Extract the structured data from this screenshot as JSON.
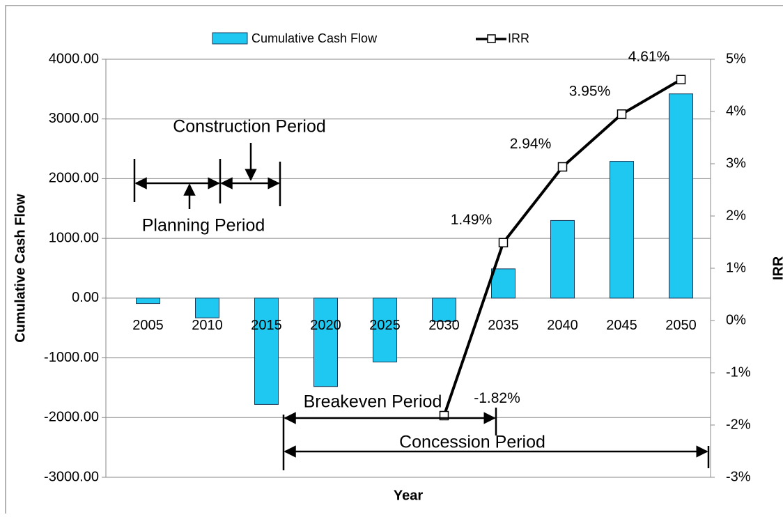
{
  "chart_data": {
    "type": "bar",
    "categories": [
      "2005",
      "2010",
      "2015",
      "2020",
      "2025",
      "2030",
      "2035",
      "2040",
      "2045",
      "2050"
    ],
    "series": [
      {
        "name": "Cumulative Cash Flow",
        "type": "bar",
        "color": "#1ec8f0",
        "values": [
          -90,
          -330,
          -1780,
          -1480,
          -1070,
          -390,
          490,
          1300,
          2290,
          3420
        ]
      },
      {
        "name": "IRR",
        "type": "line",
        "color": "#000000",
        "axis": "y2",
        "values": [
          null,
          null,
          null,
          null,
          null,
          -1.82,
          1.49,
          2.94,
          3.95,
          4.61
        ],
        "value_labels": [
          null,
          null,
          null,
          null,
          null,
          "-1.82%",
          "1.49%",
          "2.94%",
          "3.95%",
          "4.61%"
        ]
      }
    ],
    "x_label": "Year",
    "y_label": "Cumulative Cash Flow",
    "y2_label": "IRR",
    "ylim": [
      -3000,
      4000
    ],
    "yticks": [
      {
        "value": -3000,
        "label": "-3000.00"
      },
      {
        "value": -2000,
        "label": "-2000.00"
      },
      {
        "value": -1000,
        "label": "-1000.00"
      },
      {
        "value": 0,
        "label": "0.00"
      },
      {
        "value": 1000,
        "label": "1000.00"
      },
      {
        "value": 2000,
        "label": "2000.00"
      },
      {
        "value": 3000,
        "label": "3000.00"
      },
      {
        "value": 4000,
        "label": "4000.00"
      }
    ],
    "y2lim": [
      -3,
      5
    ],
    "y2ticks": [
      {
        "value": -3,
        "label": "-3%"
      },
      {
        "value": -2,
        "label": "-2%"
      },
      {
        "value": -1,
        "label": "-1%"
      },
      {
        "value": 0,
        "label": "0%"
      },
      {
        "value": 1,
        "label": "1%"
      },
      {
        "value": 2,
        "label": "2%"
      },
      {
        "value": 3,
        "label": "3%"
      },
      {
        "value": 4,
        "label": "4%"
      },
      {
        "value": 5,
        "label": "5%"
      }
    ],
    "grid": true,
    "legend": "top",
    "annotations": [
      "Construction Period",
      "Planning Period",
      "Breakeven Period",
      "Concession Period"
    ]
  }
}
